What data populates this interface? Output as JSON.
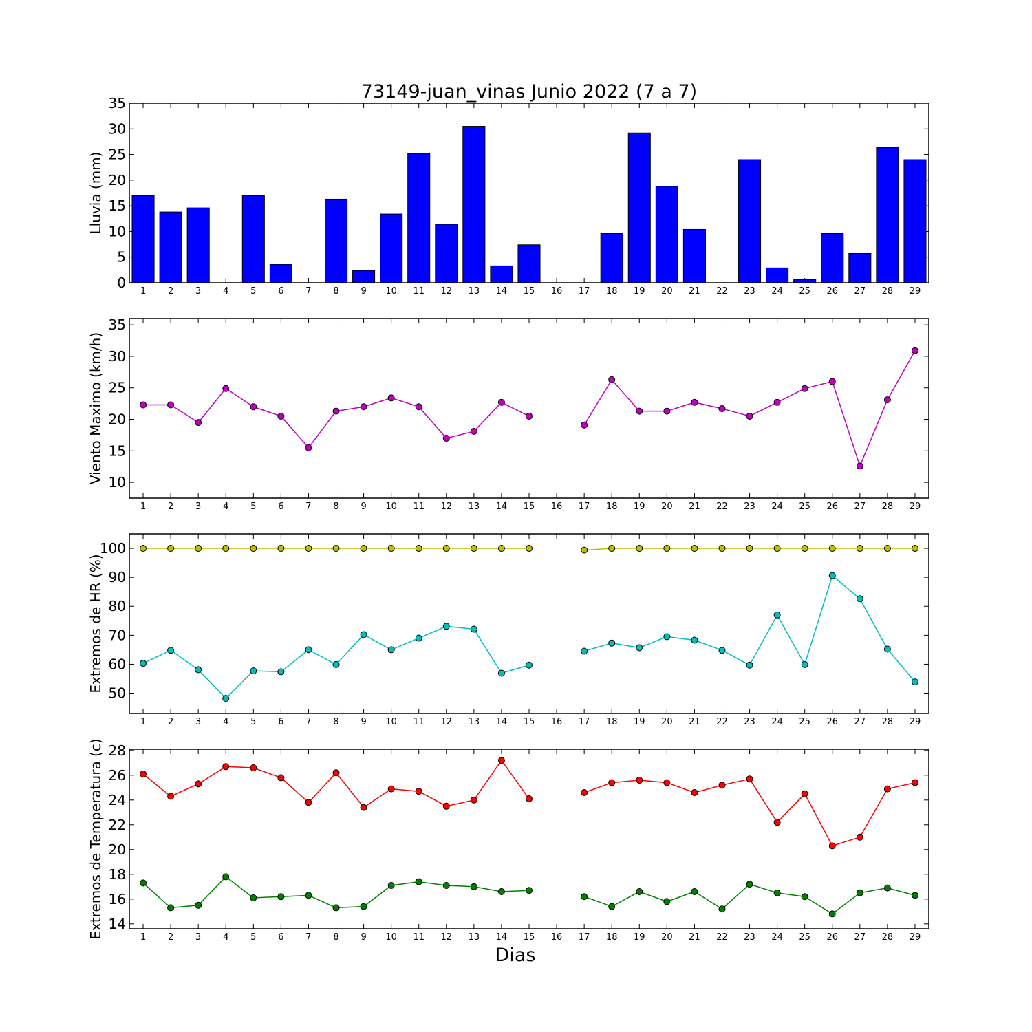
{
  "chart_data": [
    {
      "type": "bar",
      "title": "73149-juan_vinas Junio 2022  (7 a 7)",
      "xlabel": "",
      "ylabel": "Lluvia (mm)",
      "ylim": [
        0,
        35
      ],
      "yticks": [
        0,
        5,
        10,
        15,
        20,
        25,
        30,
        35
      ],
      "categories": [
        "1",
        "2",
        "3",
        "4",
        "5",
        "6",
        "7",
        "8",
        "9",
        "10",
        "11",
        "12",
        "13",
        "14",
        "15",
        "16",
        "17",
        "18",
        "19",
        "20",
        "21",
        "22",
        "23",
        "24",
        "25",
        "26",
        "27",
        "28",
        "29"
      ],
      "series": [
        {
          "color": "#0000ff",
          "values": [
            17.0,
            13.8,
            14.6,
            0.0,
            17.0,
            3.6,
            0.0,
            16.3,
            2.4,
            13.4,
            25.2,
            11.4,
            30.5,
            3.3,
            7.4,
            0.0,
            0.0,
            9.6,
            29.2,
            18.8,
            10.4,
            0.0,
            24.0,
            2.9,
            0.6,
            9.6,
            5.7,
            26.4,
            24.0
          ]
        }
      ]
    },
    {
      "type": "line",
      "title": "",
      "xlabel": "",
      "ylabel": "Viento Maximo (km/h)",
      "ylim": [
        7.5,
        36
      ],
      "yticks": [
        10,
        15,
        20,
        25,
        30,
        35
      ],
      "categories": [
        "1",
        "2",
        "3",
        "4",
        "5",
        "6",
        "7",
        "8",
        "9",
        "10",
        "11",
        "12",
        "13",
        "14",
        "15",
        "16",
        "17",
        "18",
        "19",
        "20",
        "21",
        "22",
        "23",
        "24",
        "25",
        "26",
        "27",
        "28",
        "29"
      ],
      "series": [
        {
          "color": "#bf00bf",
          "values": [
            22.3,
            22.3,
            19.5,
            24.9,
            22.0,
            20.5,
            15.5,
            21.3,
            22.0,
            23.4,
            22.0,
            17.0,
            18.1,
            22.7,
            20.5,
            null,
            19.1,
            26.3,
            21.3,
            21.3,
            22.7,
            21.7,
            20.5,
            22.7,
            24.9,
            26.0,
            12.6,
            23.1,
            30.9
          ]
        }
      ]
    },
    {
      "type": "line",
      "title": "",
      "xlabel": "",
      "ylabel": "Extremos de HR (%)",
      "ylim": [
        43,
        105
      ],
      "yticks": [
        50,
        60,
        70,
        80,
        90,
        100
      ],
      "categories": [
        "1",
        "2",
        "3",
        "4",
        "5",
        "6",
        "7",
        "8",
        "9",
        "10",
        "11",
        "12",
        "13",
        "14",
        "15",
        "16",
        "17",
        "18",
        "19",
        "20",
        "21",
        "22",
        "23",
        "24",
        "25",
        "26",
        "27",
        "28",
        "29"
      ],
      "series": [
        {
          "color": "#bfbf00",
          "values": [
            100,
            100,
            100,
            100,
            100,
            100,
            100,
            100,
            100,
            100,
            100,
            100,
            100,
            100,
            100,
            null,
            99.4,
            100,
            100,
            100,
            100,
            100,
            100,
            100,
            100,
            100,
            100,
            100,
            100
          ]
        },
        {
          "color": "#00bfbf",
          "values": [
            60.3,
            64.8,
            58.1,
            48.2,
            57.7,
            57.4,
            65.0,
            59.9,
            70.2,
            65.0,
            69.0,
            73.1,
            72.1,
            56.9,
            59.7,
            null,
            64.5,
            67.3,
            65.7,
            69.5,
            68.3,
            64.8,
            59.7,
            77.0,
            59.9,
            90.6,
            82.6,
            65.2,
            53.9
          ]
        }
      ]
    },
    {
      "type": "line",
      "title": "",
      "xlabel": "Dias",
      "ylabel": "Extremos de Temperatura (c)",
      "ylim": [
        13.6,
        28.1
      ],
      "yticks": [
        14,
        16,
        18,
        20,
        22,
        24,
        26,
        28
      ],
      "categories": [
        "1",
        "2",
        "3",
        "4",
        "5",
        "6",
        "7",
        "8",
        "9",
        "10",
        "11",
        "12",
        "13",
        "14",
        "15",
        "16",
        "17",
        "18",
        "19",
        "20",
        "21",
        "22",
        "23",
        "24",
        "25",
        "26",
        "27",
        "28",
        "29"
      ],
      "series": [
        {
          "color": "#ff0000",
          "values": [
            26.1,
            24.3,
            25.3,
            26.7,
            26.6,
            25.8,
            23.8,
            26.2,
            23.4,
            24.9,
            24.7,
            23.5,
            24.0,
            27.2,
            24.1,
            null,
            24.6,
            25.4,
            25.6,
            25.4,
            24.6,
            25.2,
            25.7,
            22.2,
            24.5,
            20.3,
            21.0,
            24.9,
            25.4
          ]
        },
        {
          "color": "#008000",
          "values": [
            17.3,
            15.3,
            15.5,
            17.8,
            16.1,
            16.2,
            16.3,
            15.3,
            15.4,
            17.1,
            17.4,
            17.1,
            17.0,
            16.6,
            16.7,
            null,
            16.2,
            15.4,
            16.6,
            15.8,
            16.6,
            15.2,
            17.2,
            16.5,
            16.2,
            14.8,
            16.5,
            16.9,
            16.3
          ]
        }
      ]
    }
  ]
}
